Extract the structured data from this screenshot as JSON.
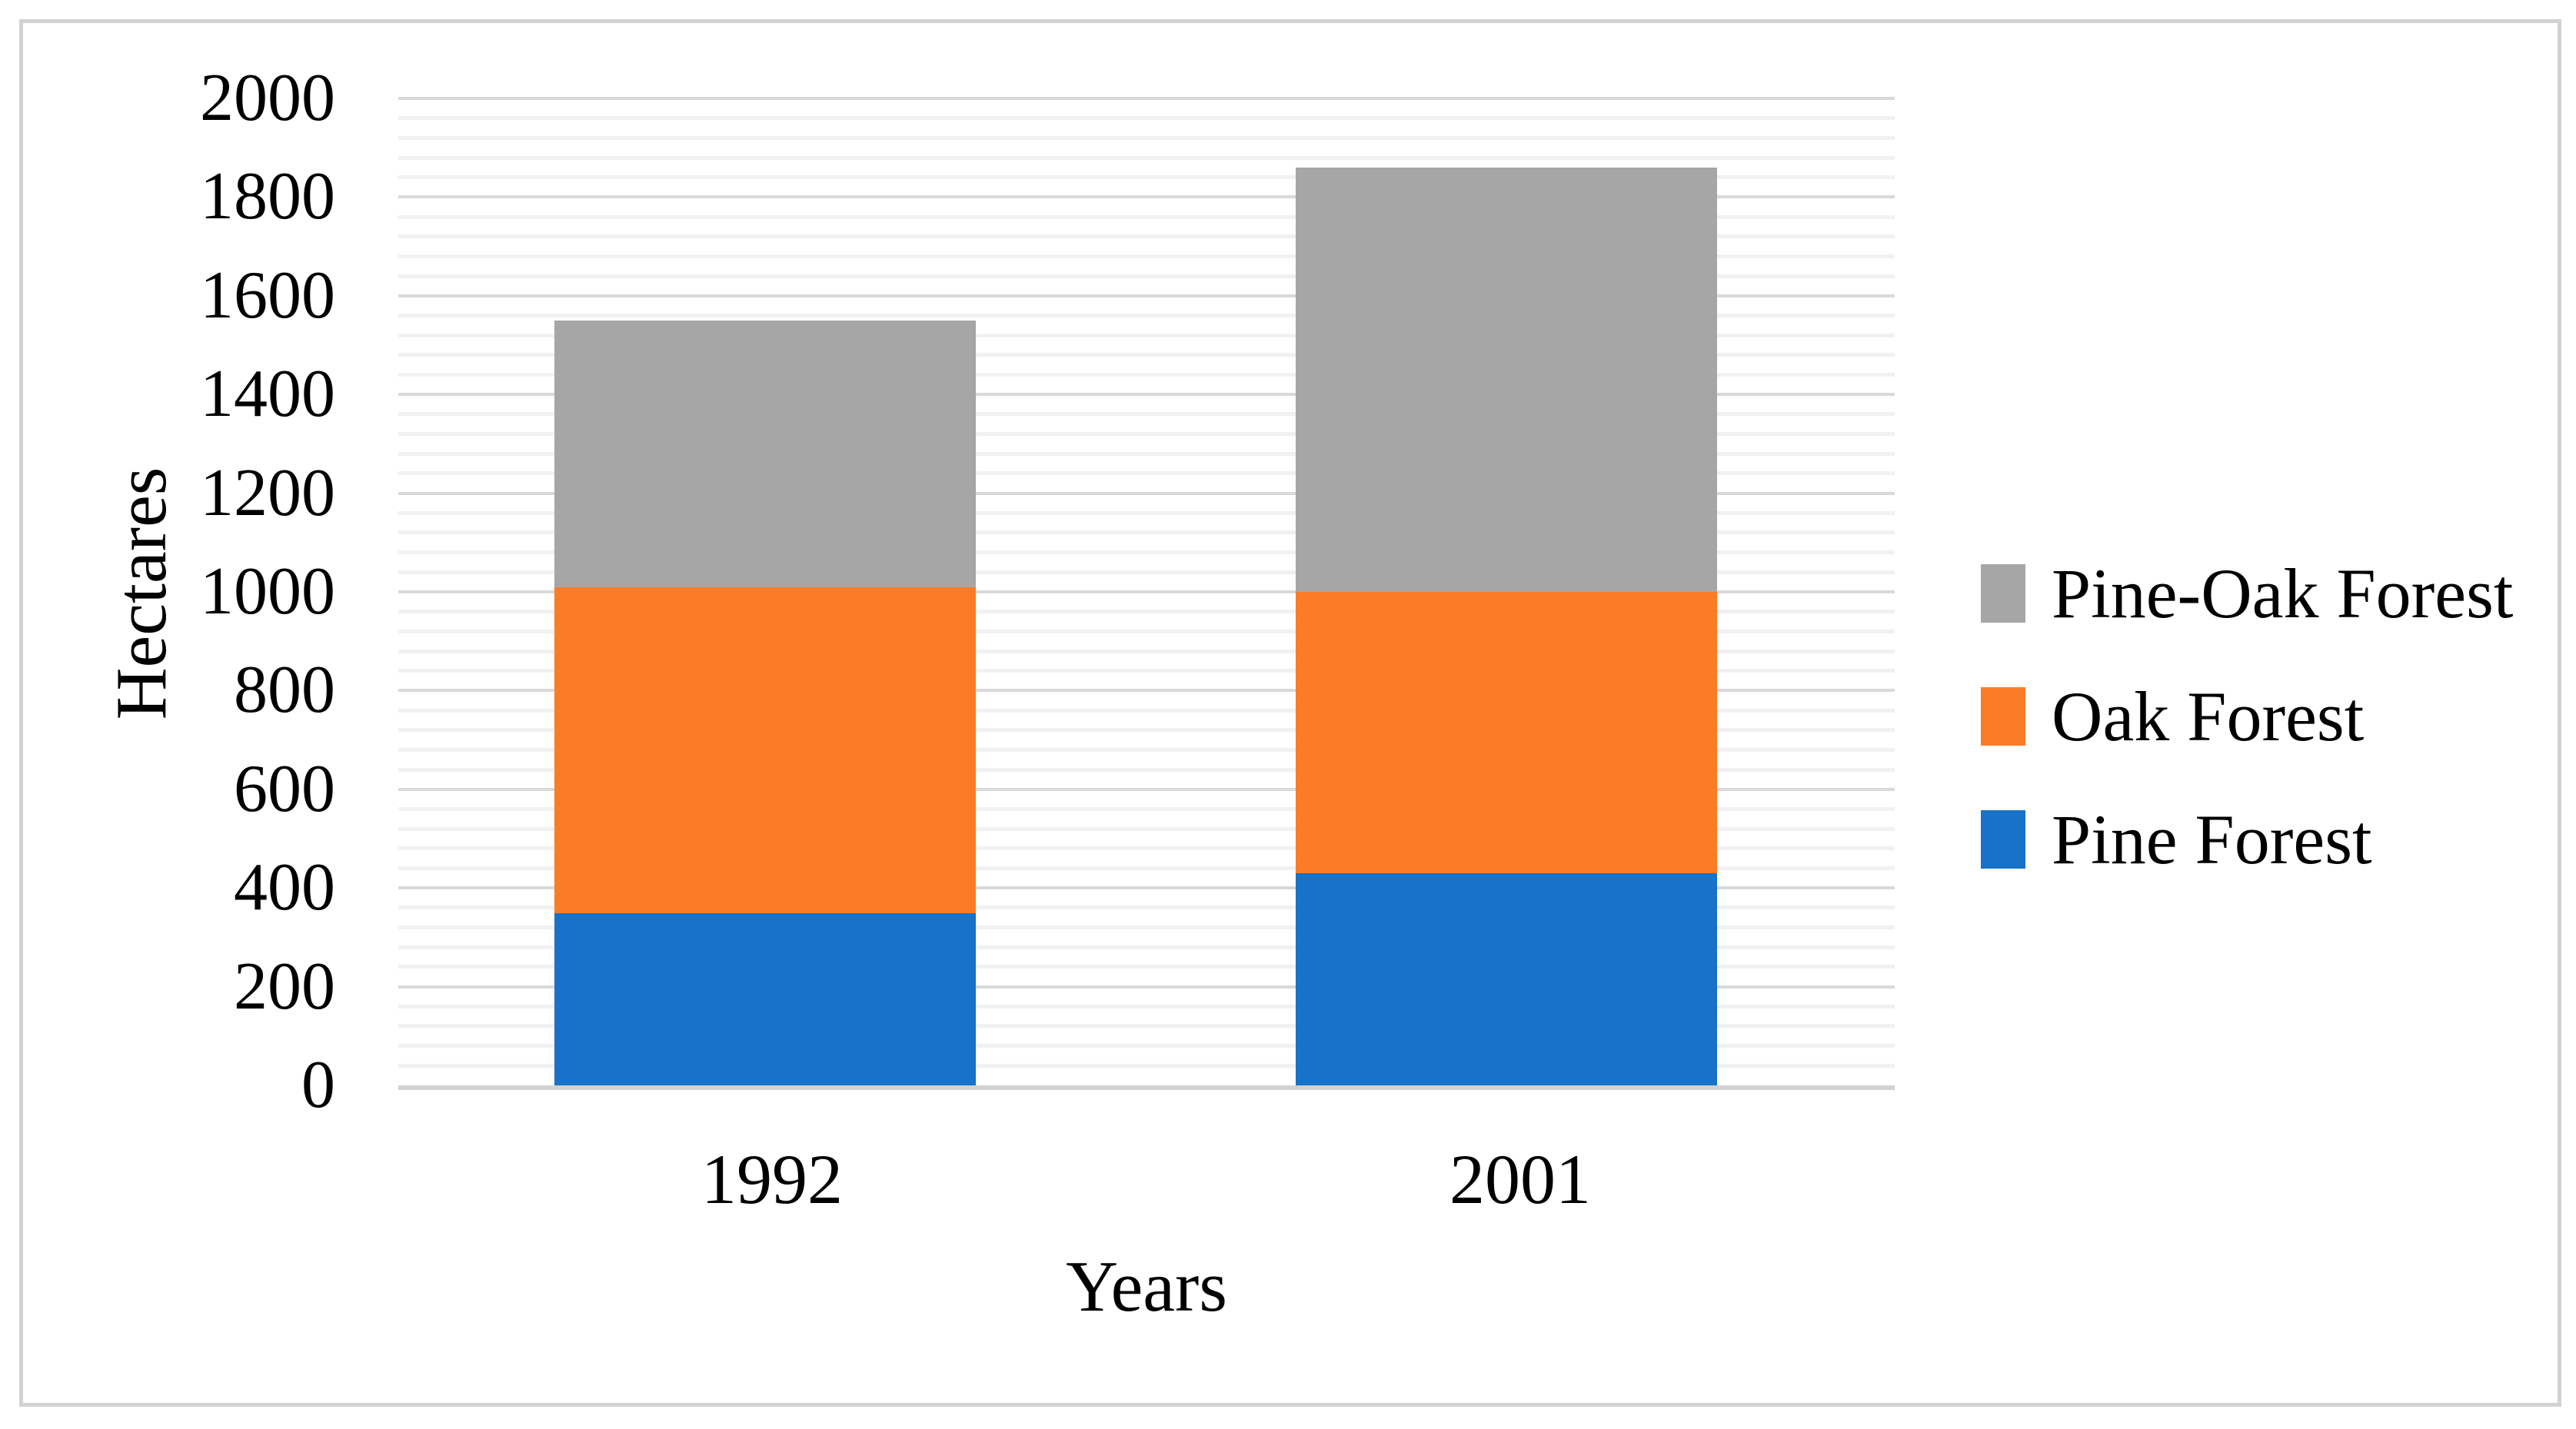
{
  "figure": {
    "background": "#ffffff",
    "border_color": "#d2d2d2"
  },
  "chart_data": {
    "type": "bar",
    "stacked": true,
    "title": "",
    "xlabel": "Years",
    "ylabel": "Hectares",
    "categories": [
      "1992",
      "2001"
    ],
    "series": [
      {
        "name": "Pine Forest",
        "color": "#1772C8",
        "values": [
          350,
          430
        ]
      },
      {
        "name": "Oak Forest",
        "color": "#FB7C26",
        "values": [
          660,
          570
        ]
      },
      {
        "name": "Pine-Oak Forest",
        "color": "#A6A6A6",
        "values": [
          540,
          860
        ]
      }
    ],
    "stack_totals": [
      1550,
      1860
    ],
    "ylim": [
      0,
      2000
    ],
    "ytick_step": 200,
    "minor_gridline_step": 40,
    "ytick_labels": [
      "0",
      "200",
      "400",
      "600",
      "800",
      "1000",
      "1200",
      "1400",
      "1600",
      "1800",
      "2000"
    ],
    "grid": true,
    "legend_position": "right",
    "legend_order_top_to_bottom": [
      "Pine-Oak Forest",
      "Oak Forest",
      "Pine Forest"
    ],
    "gridline_colors": {
      "major": "#D9D9D9",
      "minor": "#F1F1F1",
      "axis_line": "#D2D2D2"
    }
  }
}
